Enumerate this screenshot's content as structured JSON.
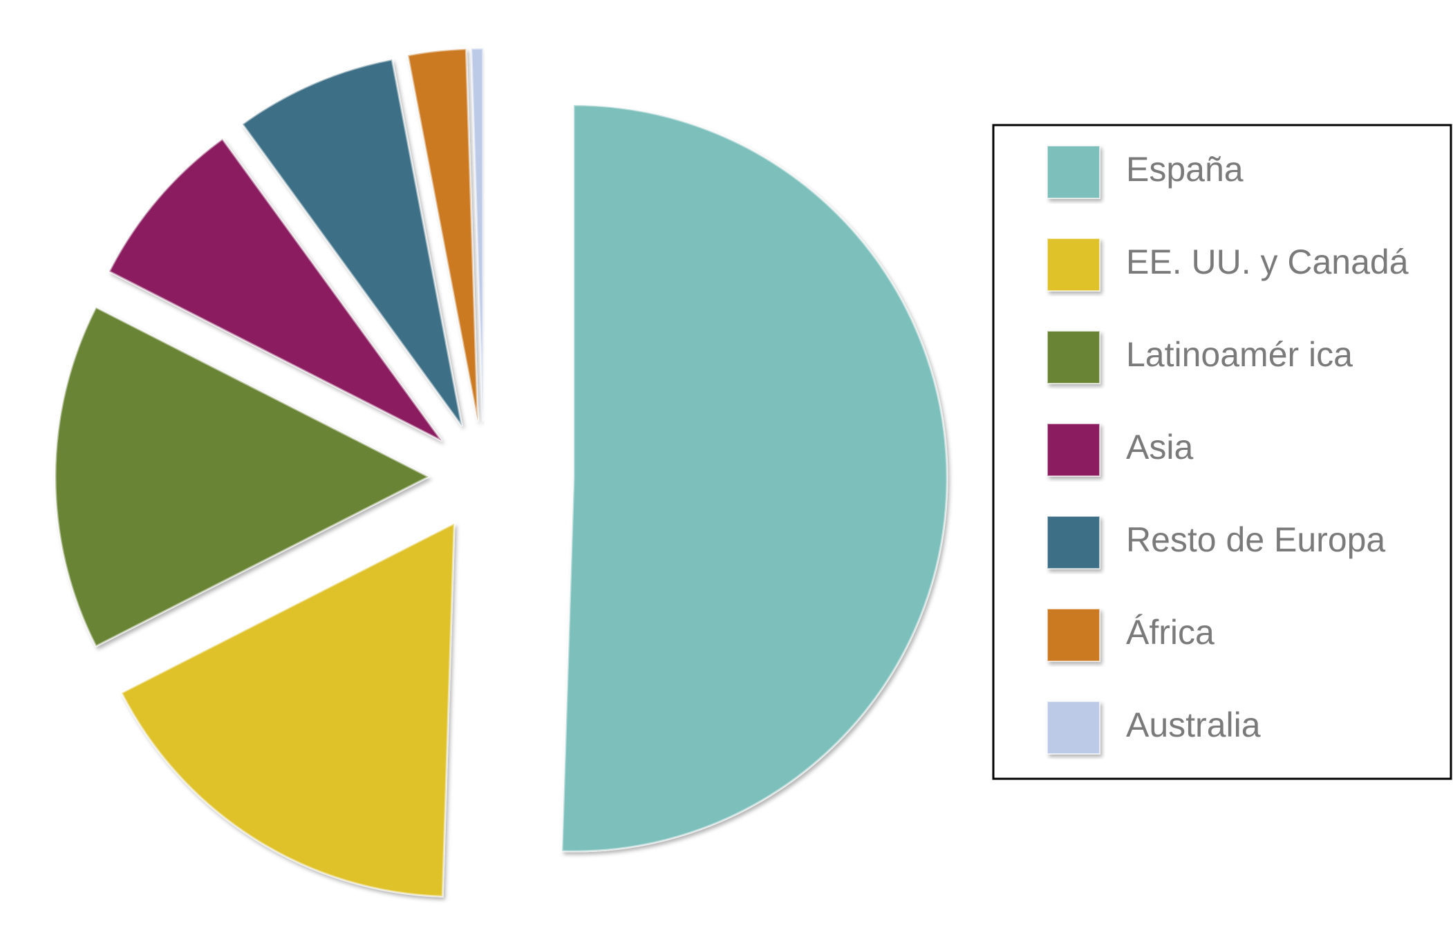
{
  "chart_data": {
    "type": "pie",
    "categories": [
      "España",
      "EE. UU. y Canadá",
      "Latinoamér ica",
      "Asia",
      "Resto de Europa",
      "África",
      "Australia"
    ],
    "values": [
      50.5,
      17,
      15,
      7.5,
      7,
      2.5,
      0.5
    ],
    "colors": [
      "#7bbfbb",
      "#dfc229",
      "#6a8434",
      "#8a1e5f",
      "#3e7086",
      "#cc7a24",
      "#bccae8"
    ],
    "legend": "right"
  }
}
